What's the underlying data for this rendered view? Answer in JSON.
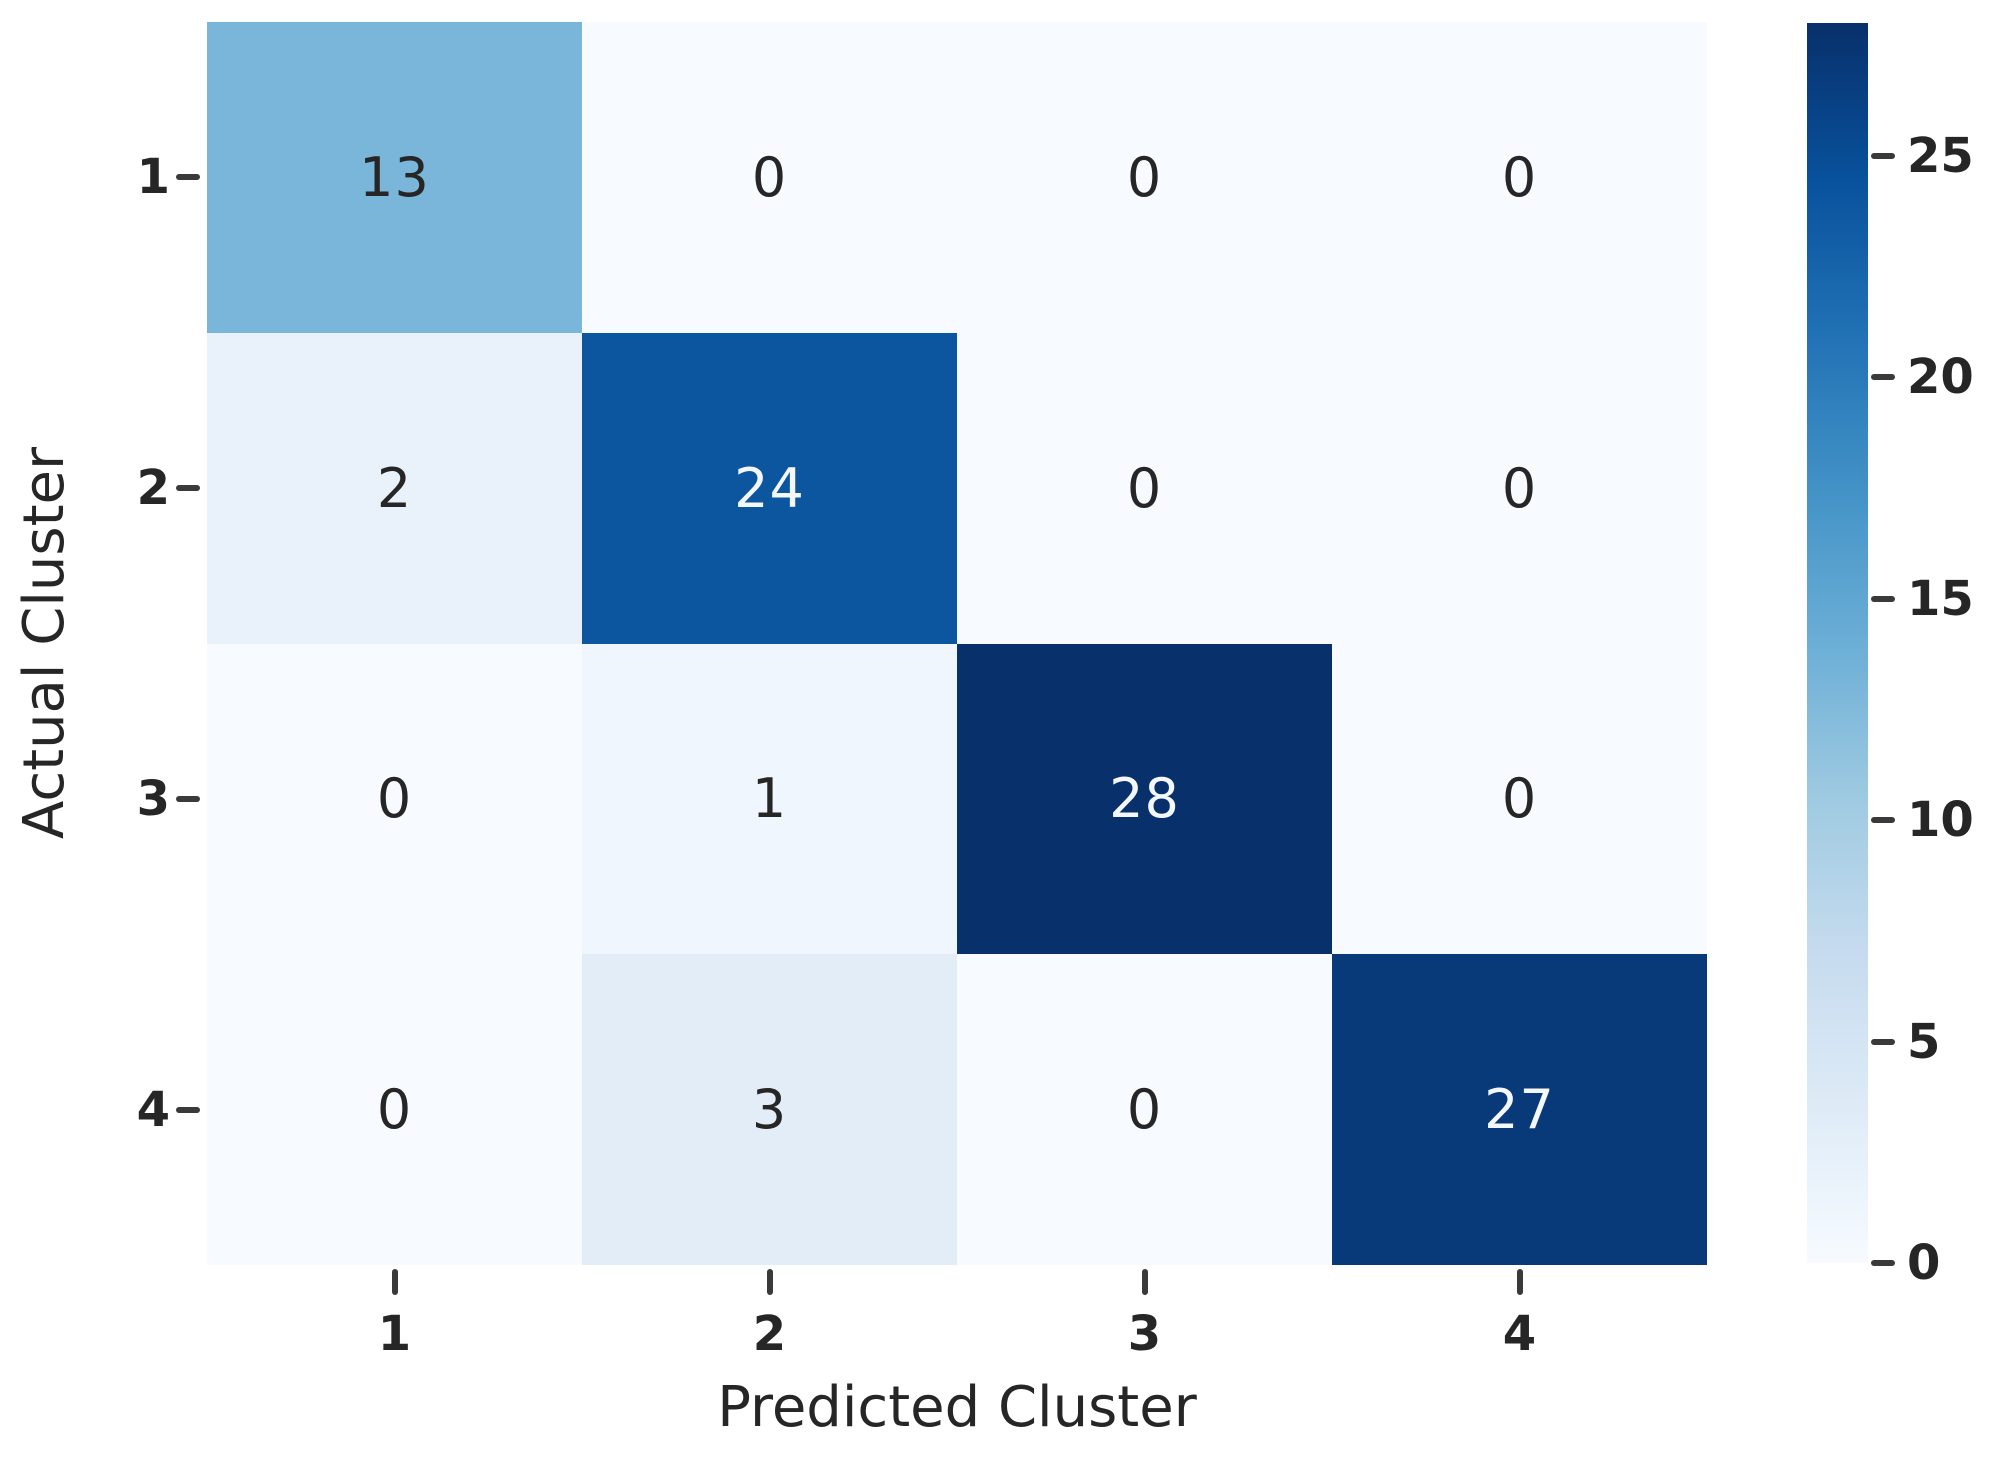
{
  "figure": {
    "background": "#ffffff",
    "tick_color": "#262626"
  },
  "chart_data": {
    "type": "heatmap",
    "title": "",
    "xlabel": "Predicted Cluster",
    "ylabel": "Actual Cluster",
    "x_tick_labels": [
      "1",
      "2",
      "3",
      "4"
    ],
    "y_tick_labels": [
      "1",
      "2",
      "3",
      "4"
    ],
    "matrix": [
      [
        13,
        0,
        0,
        0
      ],
      [
        2,
        24,
        0,
        0
      ],
      [
        0,
        1,
        28,
        0
      ],
      [
        0,
        3,
        0,
        27
      ]
    ],
    "vmin": 0,
    "vmax": 28,
    "grid": false,
    "legend_position": "right",
    "colormap": {
      "name": "Blues",
      "stops": [
        "#f7fbff",
        "#deebf7",
        "#c6dbef",
        "#9ecae1",
        "#6baed6",
        "#4292c6",
        "#2171b5",
        "#08519c",
        "#08306b"
      ]
    },
    "colorbar_ticks": [
      0,
      5,
      10,
      15,
      20,
      25
    ],
    "annotation_color_dark": "#262626",
    "annotation_color_light": "#f4f8fc"
  }
}
